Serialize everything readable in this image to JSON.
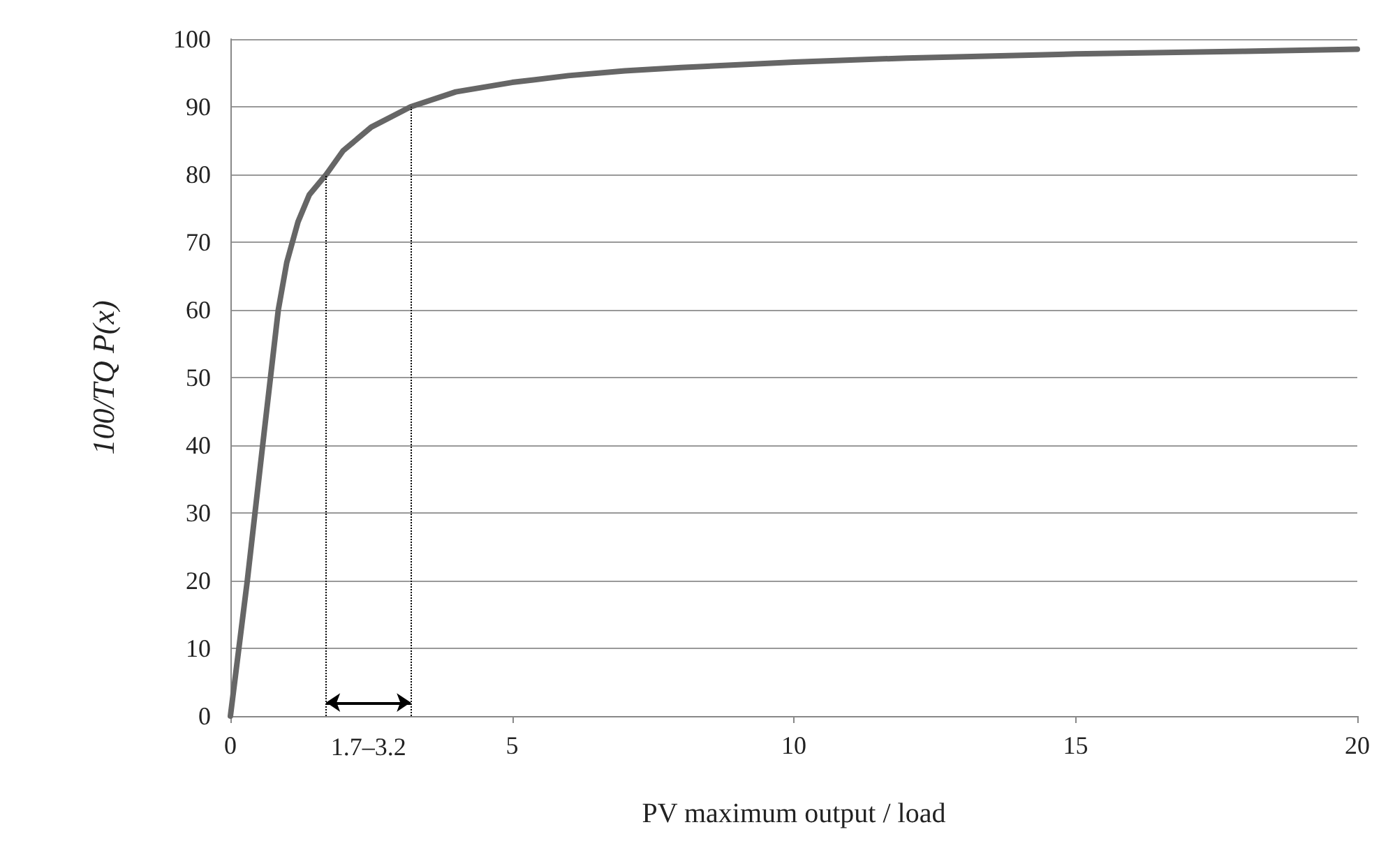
{
  "chart_data": {
    "type": "line",
    "xlabel": "PV maximum output / load",
    "ylabel": "100/TQ P(x)",
    "x": [
      0,
      0.3,
      0.6,
      0.85,
      1.0,
      1.2,
      1.4,
      1.7,
      2,
      2.5,
      3.2,
      4,
      5,
      6,
      7,
      8,
      10,
      12,
      15,
      18,
      20
    ],
    "series": [
      {
        "color": "#666666",
        "values": [
          0,
          20,
          42,
          60,
          67,
          73,
          77,
          80,
          83.5,
          87,
          90,
          92.2,
          93.6,
          94.6,
          95.3,
          95.8,
          96.6,
          97.2,
          97.8,
          98.2,
          98.5
        ]
      }
    ],
    "xlim": [
      0,
      20
    ],
    "xticks": [
      0,
      5,
      10,
      15,
      20
    ],
    "ylim": [
      0,
      100
    ],
    "yticks": [
      0,
      10,
      20,
      30,
      40,
      50,
      60,
      70,
      80,
      90,
      100
    ],
    "grid": "y",
    "marker": "none",
    "line_style": "solid",
    "ref_lines": [
      {
        "axis": "x",
        "value": 1.7,
        "line_style": "dotted",
        "color": "#000000"
      },
      {
        "axis": "x",
        "value": 3.2,
        "line_style": "dotted",
        "color": "#000000"
      }
    ],
    "annotations": [
      "1.7–3.2"
    ]
  }
}
